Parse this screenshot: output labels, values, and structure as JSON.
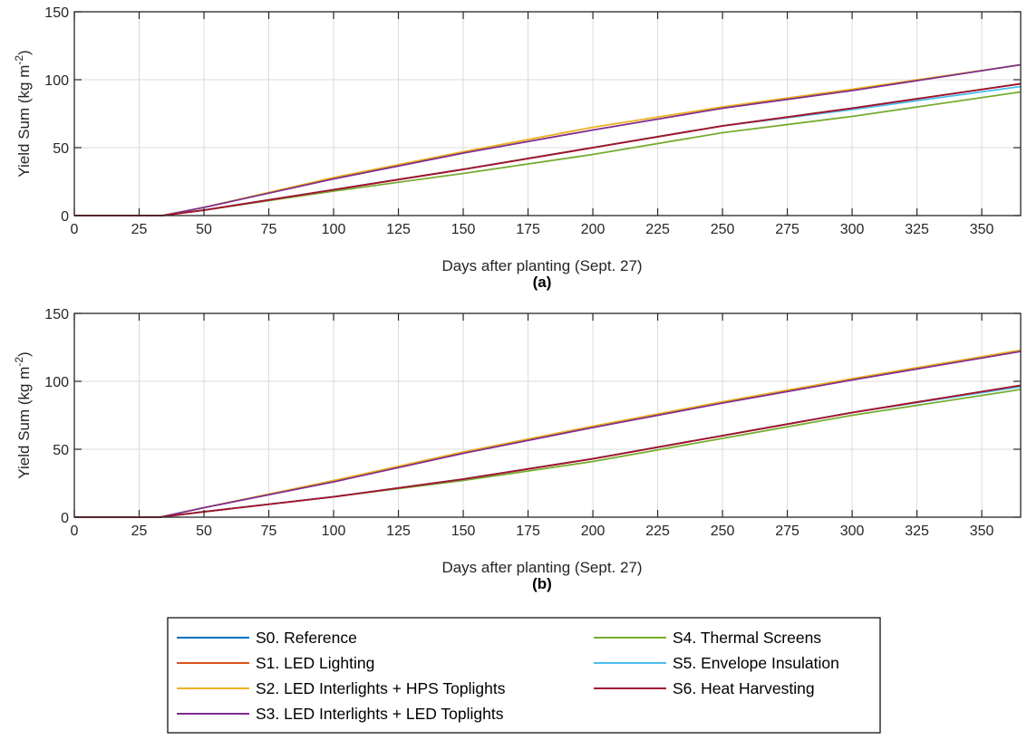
{
  "chart_data": [
    {
      "type": "line",
      "panel_label": "(a)",
      "xlabel": "Days after planting (Sept. 27)",
      "ylabel": "Yield Sum (kg m-2)",
      "ylabel_parts": {
        "main": "Yield Sum (kg m",
        "sup": "-2",
        "end": ")"
      },
      "xlim": [
        0,
        365
      ],
      "ylim": [
        0,
        150
      ],
      "xticks": [
        0,
        25,
        50,
        75,
        100,
        125,
        150,
        175,
        200,
        225,
        250,
        275,
        300,
        325,
        350
      ],
      "yticks": [
        0,
        50,
        100,
        150
      ],
      "grid": true,
      "series": [
        {
          "name": "S0. Reference",
          "color": "#0072BD",
          "x": [
            0,
            34,
            50,
            100,
            150,
            200,
            250,
            300,
            365
          ],
          "y": [
            0,
            0,
            4,
            19,
            34,
            50,
            66,
            79,
            97
          ]
        },
        {
          "name": "S1. LED Lighting",
          "color": "#D95319",
          "x": [
            0,
            34,
            50,
            100,
            150,
            200,
            250,
            300,
            365
          ],
          "y": [
            0,
            0,
            4,
            19,
            34,
            50,
            66,
            79,
            97
          ]
        },
        {
          "name": "S2. LED Interlights + HPS Toplights",
          "color": "#EDB120",
          "x": [
            0,
            34,
            50,
            100,
            150,
            200,
            250,
            300,
            365
          ],
          "y": [
            0,
            0,
            6,
            28,
            47,
            65,
            80,
            93,
            111
          ]
        },
        {
          "name": "S3. LED Interlights + LED Toplights",
          "color": "#7E2F8E",
          "x": [
            0,
            34,
            50,
            100,
            150,
            200,
            250,
            300,
            365
          ],
          "y": [
            0,
            0,
            6,
            27,
            46,
            63,
            79,
            92,
            111
          ]
        },
        {
          "name": "S4. Thermal Screens",
          "color": "#77AC30",
          "x": [
            0,
            34,
            50,
            100,
            150,
            200,
            250,
            300,
            365
          ],
          "y": [
            0,
            0,
            4,
            18,
            31,
            45,
            61,
            73,
            91
          ]
        },
        {
          "name": "S5. Envelope Insulation",
          "color": "#4DBEEE",
          "x": [
            0,
            34,
            50,
            100,
            150,
            200,
            250,
            300,
            365
          ],
          "y": [
            0,
            0,
            4,
            19,
            34,
            50,
            66,
            78,
            95
          ]
        },
        {
          "name": "S6. Heat Harvesting",
          "color": "#A2142F",
          "x": [
            0,
            34,
            50,
            100,
            150,
            200,
            250,
            300,
            365
          ],
          "y": [
            0,
            0,
            4,
            19,
            34,
            50,
            66,
            79,
            97
          ]
        }
      ]
    },
    {
      "type": "line",
      "panel_label": "(b)",
      "xlabel": "Days after planting (Sept. 27)",
      "ylabel": "Yield Sum (kg m-2)",
      "ylabel_parts": {
        "main": "Yield Sum (kg m",
        "sup": "-2",
        "end": ")"
      },
      "xlim": [
        0,
        365
      ],
      "ylim": [
        0,
        150
      ],
      "xticks": [
        0,
        25,
        50,
        75,
        100,
        125,
        150,
        175,
        200,
        225,
        250,
        275,
        300,
        325,
        350
      ],
      "yticks": [
        0,
        50,
        100,
        150
      ],
      "grid": true,
      "series": [
        {
          "name": "S0. Reference",
          "color": "#0072BD",
          "x": [
            0,
            33,
            50,
            100,
            150,
            200,
            250,
            300,
            365
          ],
          "y": [
            0,
            0,
            4,
            15,
            28,
            43,
            60,
            77,
            97
          ]
        },
        {
          "name": "S1. LED Lighting",
          "color": "#D95319",
          "x": [
            0,
            33,
            50,
            100,
            150,
            200,
            250,
            300,
            365
          ],
          "y": [
            0,
            0,
            4,
            15,
            28,
            43,
            60,
            77,
            97
          ]
        },
        {
          "name": "S2. LED Interlights + HPS Toplights",
          "color": "#EDB120",
          "x": [
            0,
            33,
            50,
            100,
            150,
            200,
            250,
            300,
            365
          ],
          "y": [
            0,
            0,
            7,
            27,
            48,
            67,
            85,
            102,
            123
          ]
        },
        {
          "name": "S3. LED Interlights + LED Toplights",
          "color": "#7E2F8E",
          "x": [
            0,
            33,
            50,
            100,
            150,
            200,
            250,
            300,
            365
          ],
          "y": [
            0,
            0,
            7,
            26,
            47,
            66,
            84,
            101,
            122
          ]
        },
        {
          "name": "S4. Thermal Screens",
          "color": "#77AC30",
          "x": [
            0,
            33,
            50,
            100,
            150,
            200,
            250,
            300,
            365
          ],
          "y": [
            0,
            0,
            4,
            15,
            27,
            41,
            58,
            75,
            94
          ]
        },
        {
          "name": "S5. Envelope Insulation",
          "color": "#4DBEEE",
          "x": [
            0,
            33,
            50,
            100,
            150,
            200,
            250,
            300,
            365
          ],
          "y": [
            0,
            0,
            4,
            15,
            28,
            43,
            60,
            77,
            96
          ]
        },
        {
          "name": "S6. Heat Harvesting",
          "color": "#A2142F",
          "x": [
            0,
            33,
            50,
            100,
            150,
            200,
            250,
            300,
            365
          ],
          "y": [
            0,
            0,
            4,
            15,
            28,
            43,
            60,
            77,
            97
          ]
        }
      ]
    }
  ],
  "legend": {
    "placement": "bottom",
    "entries": [
      {
        "label": "S0. Reference",
        "color": "#0072BD"
      },
      {
        "label": "S1. LED Lighting",
        "color": "#D95319"
      },
      {
        "label": "S2. LED Interlights + HPS Toplights",
        "color": "#EDB120"
      },
      {
        "label": "S3. LED Interlights + LED Toplights",
        "color": "#7E2F8E"
      },
      {
        "label": "S4. Thermal Screens",
        "color": "#77AC30"
      },
      {
        "label": "S5. Envelope Insulation",
        "color": "#4DBEEE"
      },
      {
        "label": "S6. Heat Harvesting",
        "color": "#A2142F"
      }
    ]
  }
}
